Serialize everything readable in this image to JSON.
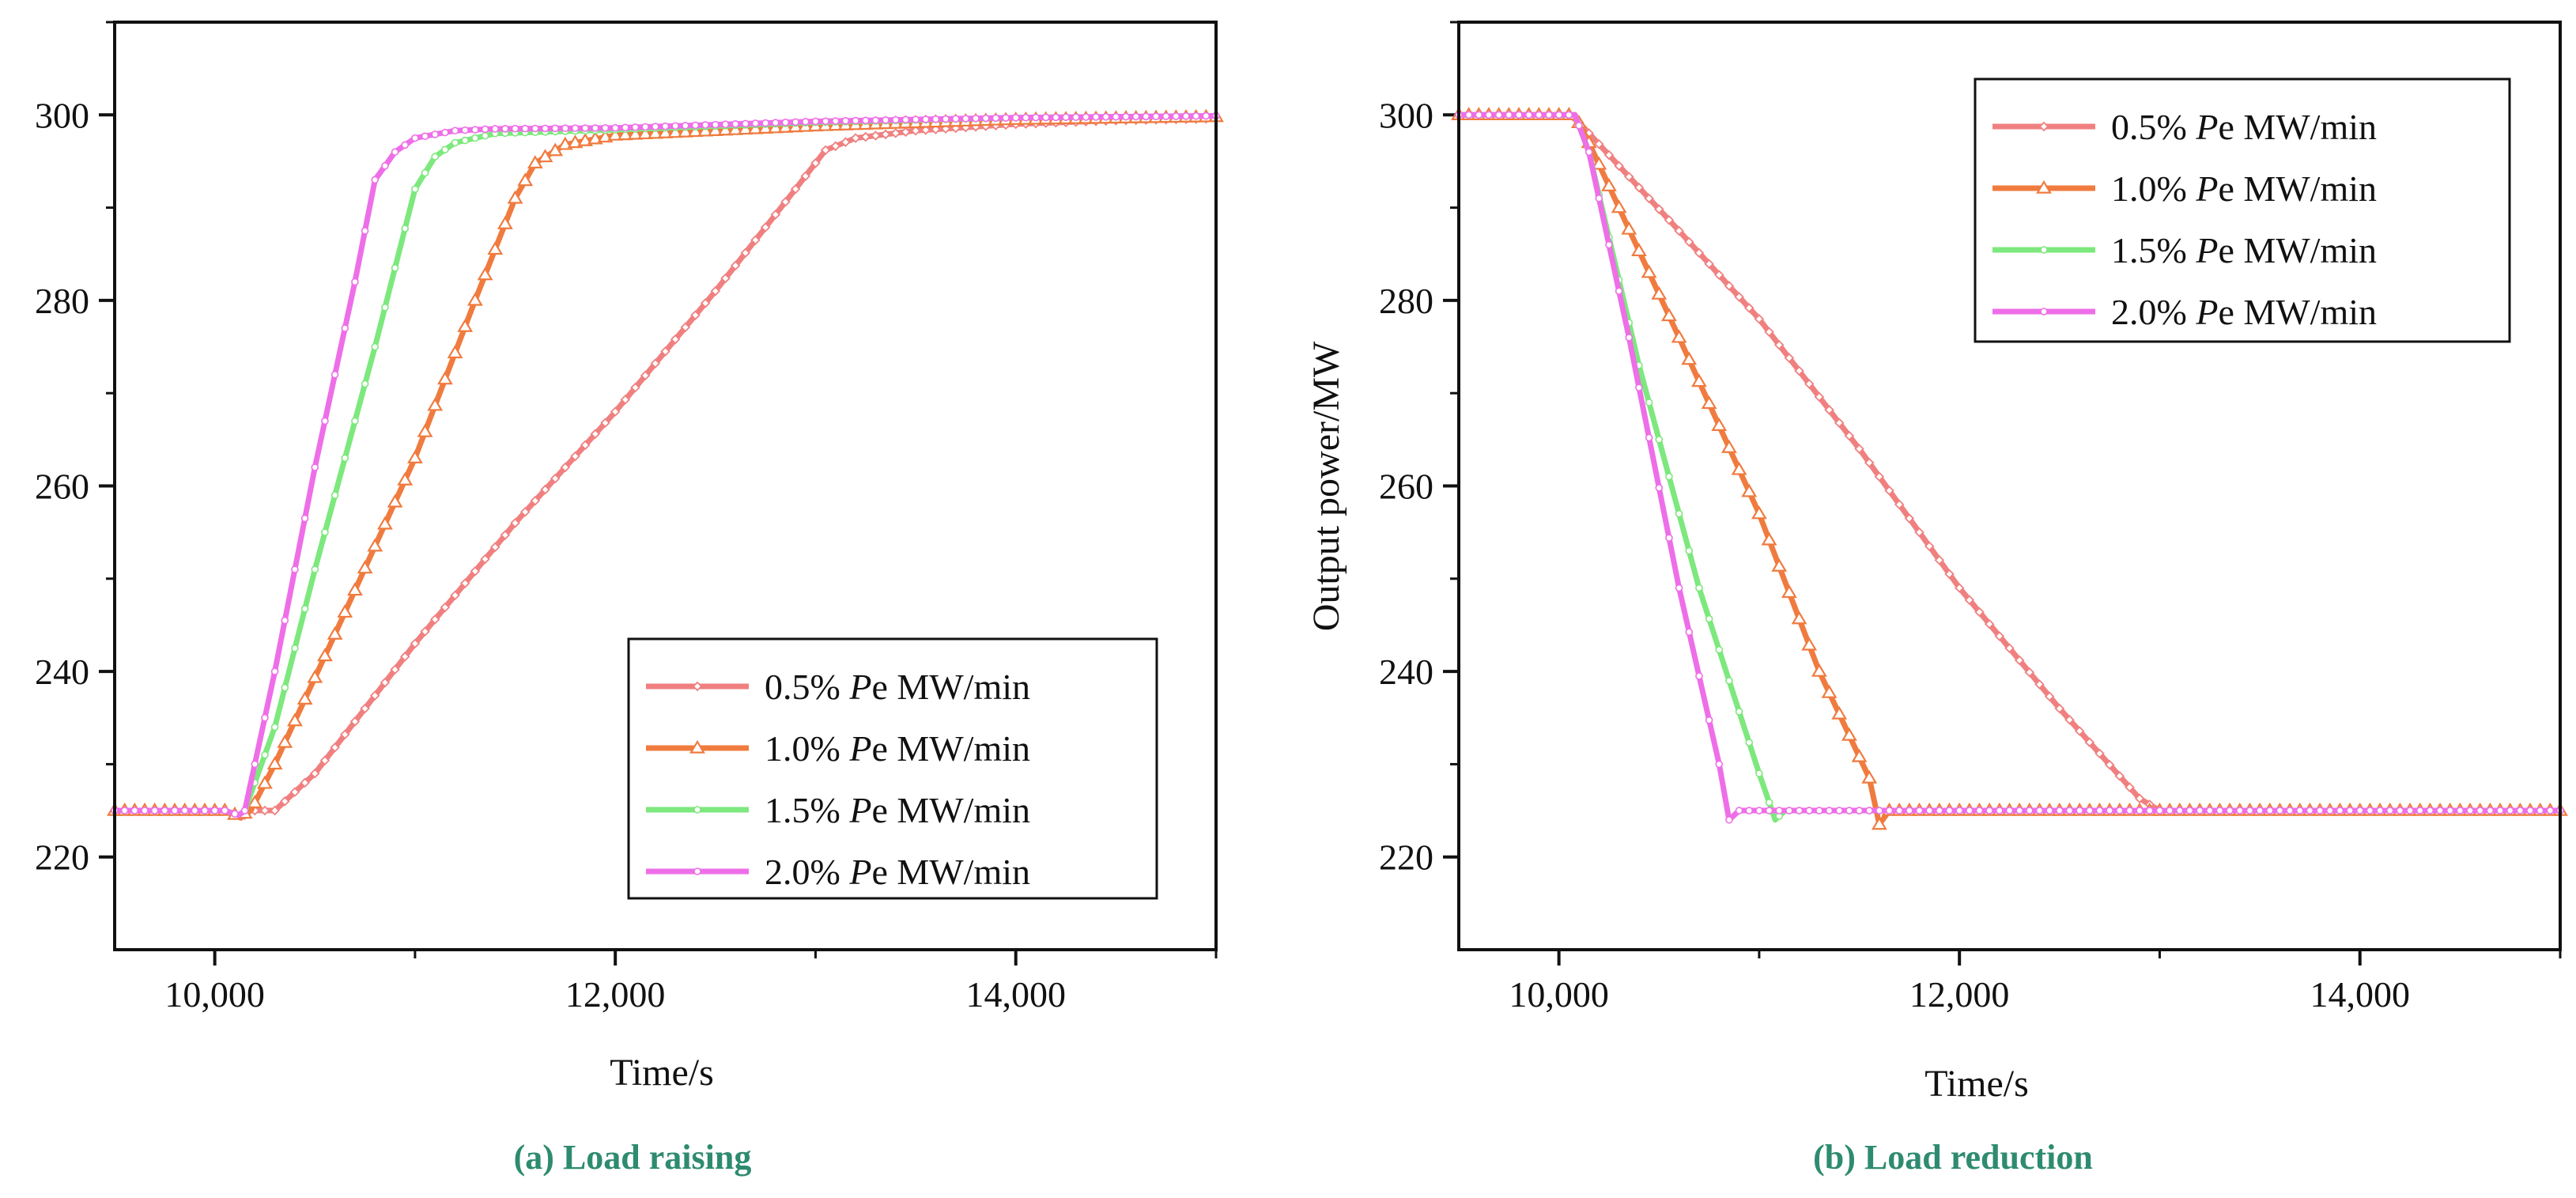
{
  "chart_data": [
    {
      "type": "line",
      "id": "a",
      "caption": "(a) Load raising",
      "xlabel": "Time/s",
      "ylabel": "",
      "xlim": [
        9500,
        15000
      ],
      "ylim": [
        210,
        310
      ],
      "xticks": [
        10000,
        12000,
        14000
      ],
      "xtick_labels": [
        "10,000",
        "12,000",
        "14,000"
      ],
      "yticks": [
        220,
        240,
        260,
        280,
        300
      ],
      "ytick_labels": [
        "220",
        "240",
        "260",
        "280",
        "300"
      ],
      "legend_position": "bottom-right",
      "legend_title_suffix": "e MW/min",
      "series": [
        {
          "name": "0.5% Pe MW/min",
          "label_pre": "0.5% ",
          "label_italic": "P",
          "label_post": "e MW/min",
          "color": "#f08080",
          "marker": "diamond",
          "x": [
            9500,
            10050,
            10130,
            10180,
            10300,
            10500,
            11000,
            11500,
            12000,
            12500,
            12900,
            13050,
            13200,
            13500,
            14000,
            14500,
            15000
          ],
          "y": [
            225,
            225,
            224.2,
            225,
            225,
            229,
            243,
            256,
            268,
            281,
            292,
            296.2,
            297.5,
            298.3,
            299,
            299.4,
            299.6
          ]
        },
        {
          "name": "1.0% Pe MW/min",
          "label_pre": "1.0% ",
          "label_italic": "P",
          "label_post": "e MW/min",
          "color": "#f07b3f",
          "marker": "triangle",
          "x": [
            9500,
            10050,
            10120,
            10180,
            10300,
            10600,
            11000,
            11300,
            11500,
            11600,
            11750,
            12000,
            12500,
            13000,
            14000,
            15000
          ],
          "y": [
            225,
            225,
            224.4,
            225,
            230,
            244,
            263,
            280,
            291,
            294.8,
            296.8,
            297.8,
            298.3,
            298.8,
            299.5,
            299.8
          ]
        },
        {
          "name": "1.5% Pe MW/min",
          "label_pre": "1.5% ",
          "label_italic": "P",
          "label_post": "e MW/min",
          "color": "#7de87d",
          "marker": "circle",
          "x": [
            9500,
            10050,
            10120,
            10150,
            10300,
            10500,
            10800,
            11000,
            11100,
            11200,
            11400,
            11700,
            12000,
            13000,
            14000,
            15000
          ],
          "y": [
            225,
            225,
            224.5,
            225,
            234,
            251,
            275,
            292,
            295.5,
            297,
            298,
            298.2,
            298.4,
            299.2,
            299.7,
            299.9
          ]
        },
        {
          "name": "2.0% Pe MW/min",
          "label_pre": "2.0% ",
          "label_italic": "P",
          "label_post": "e MW/min",
          "color": "#ee6ee8",
          "marker": "circle",
          "x": [
            9500,
            10050,
            10120,
            10150,
            10300,
            10500,
            10700,
            10800,
            10900,
            11000,
            11200,
            11400,
            12000,
            13000,
            14000,
            15000
          ],
          "y": [
            225,
            225,
            224.5,
            225,
            240,
            262,
            282,
            293,
            296,
            297.5,
            298.3,
            298.5,
            298.6,
            299.3,
            299.7,
            299.9
          ]
        }
      ]
    },
    {
      "type": "line",
      "id": "b",
      "caption": "(b) Load reduction",
      "xlabel": "Time/s",
      "ylabel": "Output power/MW",
      "xlim": [
        9500,
        15000
      ],
      "ylim": [
        210,
        310
      ],
      "xticks": [
        10000,
        12000,
        14000
      ],
      "xtick_labels": [
        "10,000",
        "12,000",
        "14,000"
      ],
      "yticks": [
        220,
        240,
        260,
        280,
        300
      ],
      "ytick_labels": [
        "220",
        "240",
        "260",
        "280",
        "300"
      ],
      "legend_position": "top-right",
      "series": [
        {
          "name": "0.5% Pe MW/min",
          "label_pre": "0.5% ",
          "label_italic": "P",
          "label_post": "e MW/min",
          "color": "#f08080",
          "marker": "diamond",
          "x": [
            9500,
            10050,
            10100,
            10300,
            10600,
            11000,
            11500,
            12000,
            12500,
            12900,
            13000,
            15000
          ],
          "y": [
            300,
            300,
            299.2,
            294.5,
            287.5,
            278,
            264,
            249,
            236,
            226.3,
            225,
            225
          ]
        },
        {
          "name": "1.0% Pe MW/min",
          "label_pre": "1.0% ",
          "label_italic": "P",
          "label_post": "e MW/min",
          "color": "#f07b3f",
          "marker": "triangle",
          "x": [
            9500,
            10080,
            10150,
            10300,
            10600,
            11000,
            11300,
            11550,
            11600,
            11650,
            15000
          ],
          "y": [
            300,
            300,
            297,
            290,
            276,
            257,
            240,
            228.5,
            223.5,
            225,
            225
          ]
        },
        {
          "name": "1.5% Pe MW/min",
          "label_pre": "1.5% ",
          "label_italic": "P",
          "label_post": "e MW/min",
          "color": "#7de87d",
          "marker": "circle",
          "x": [
            9500,
            10080,
            10150,
            10400,
            10700,
            11000,
            11080,
            11130,
            15000
          ],
          "y": [
            300,
            300,
            296,
            273,
            249,
            229,
            224,
            225,
            225
          ]
        },
        {
          "name": "2.0% Pe MW/min",
          "label_pre": "2.0% ",
          "label_italic": "P",
          "label_post": "e MW/min",
          "color": "#ee6ee8",
          "marker": "circle",
          "x": [
            9500,
            10080,
            10150,
            10350,
            10600,
            10800,
            10850,
            10900,
            15000
          ],
          "y": [
            300,
            300,
            296,
            276,
            249,
            230,
            224,
            225,
            225
          ]
        }
      ]
    }
  ]
}
